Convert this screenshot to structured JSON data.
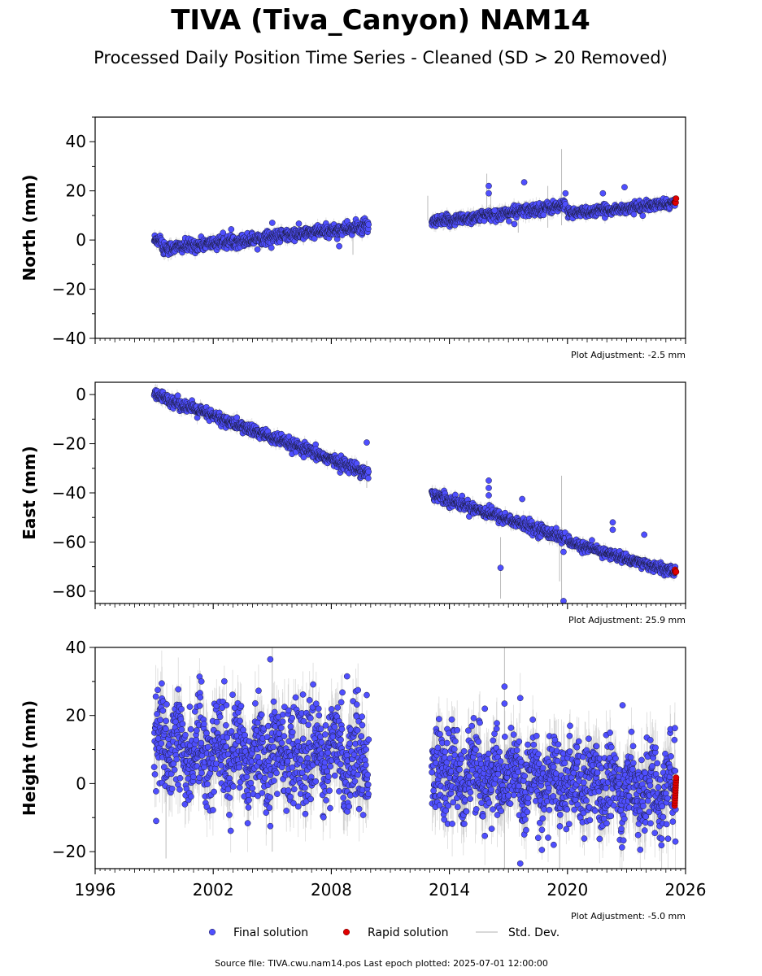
{
  "title": "TIVA (Tiva_Canyon) NAM14",
  "subtitle": "Processed Daily Position Time Series - Cleaned (SD > 20 Removed)",
  "footer": "Source file: TIVA.cwu.nam14.pos  Last epoch plotted: 2025-07-01 12:00:00",
  "legend": {
    "placement": "bottom-center",
    "items": [
      {
        "label": "Final solution",
        "color": "#4f4fff",
        "kind": "dot"
      },
      {
        "label": "Rapid solution",
        "color": "#e00000",
        "kind": "dot"
      },
      {
        "label": "Std. Dev.",
        "color": "#cccccc",
        "kind": "line"
      }
    ]
  },
  "colors": {
    "final": "#4f4fff",
    "rapid": "#e00000",
    "edge": "#1a1a3a",
    "stddev": "#bbbbbb"
  },
  "chart_data": [
    {
      "type": "scatter",
      "ylabel": "North (mm)",
      "xlim": [
        1996,
        2026
      ],
      "ylim": [
        -40,
        50
      ],
      "yticks": [
        -40,
        -20,
        0,
        20,
        40
      ],
      "adjustment": "Plot Adjustment: -2.5 mm",
      "segments": [
        {
          "x0": 1999.0,
          "x1": 2009.9,
          "y0": -4.0,
          "y1": 5.5,
          "noise": 1.3,
          "std": 2.0,
          "startBump": 1.0
        },
        {
          "x0": 2013.1,
          "x1": 2019.9,
          "y0": 7.0,
          "y1": 14.0,
          "noise": 1.2,
          "std": 2.2
        },
        {
          "x0": 2020.0,
          "x1": 2020.6,
          "y0": 11.5,
          "y1": 11.0,
          "noise": 1.0,
          "std": 2.0
        },
        {
          "x0": 2020.6,
          "x1": 2025.5,
          "y0": 11.0,
          "y1": 15.0,
          "noise": 1.0,
          "std": 1.8
        }
      ],
      "rapid": {
        "x0": 2025.45,
        "x1": 2025.52,
        "y": 15.5,
        "spread": 0.5
      },
      "outliers": [
        [
          2016.0,
          22
        ],
        [
          2016.0,
          19
        ],
        [
          2017.8,
          23.5
        ],
        [
          2005.0,
          7
        ],
        [
          2008.4,
          -2.5
        ],
        [
          2016.3,
          12
        ],
        [
          2017.3,
          6.5
        ],
        [
          2021.8,
          19
        ],
        [
          2022.9,
          21.5
        ],
        [
          2019.9,
          19
        ]
      ],
      "std_spikes": [
        [
          2012.9,
          18,
          8
        ],
        [
          2019.7,
          6,
          37
        ],
        [
          2019.0,
          5,
          22
        ],
        [
          2017.5,
          3,
          16
        ],
        [
          2016.1,
          6,
          19
        ],
        [
          2015.9,
          13,
          27
        ],
        [
          2009.1,
          -6,
          7
        ]
      ]
    },
    {
      "type": "scatter",
      "ylabel": "East (mm)",
      "xlim": [
        1996,
        2026
      ],
      "ylim": [
        -85,
        5
      ],
      "yticks": [
        -80,
        -60,
        -40,
        -20,
        0
      ],
      "adjustment": "Plot Adjustment: 25.9 mm",
      "segments": [
        {
          "x0": 1999.0,
          "x1": 2009.9,
          "y0": 0.0,
          "y1": -32.0,
          "noise": 1.2,
          "std": 2.0
        },
        {
          "x0": 2013.1,
          "x1": 2019.9,
          "y0": -40.5,
          "y1": -58.5,
          "noise": 1.2,
          "std": 2.2
        },
        {
          "x0": 2020.0,
          "x1": 2025.5,
          "y0": -60.0,
          "y1": -72.5,
          "noise": 1.0,
          "std": 1.8
        }
      ],
      "rapid": {
        "x0": 2025.45,
        "x1": 2025.52,
        "y": -71.8,
        "spread": 0.6
      },
      "outliers": [
        [
          2009.8,
          -19.5
        ],
        [
          2006.6,
          -25.5
        ],
        [
          2016.0,
          -35
        ],
        [
          2016.0,
          -38
        ],
        [
          2016.0,
          -41
        ],
        [
          2017.7,
          -42.5
        ],
        [
          2016.6,
          -70.5
        ],
        [
          2019.8,
          -84
        ],
        [
          2019.8,
          -64
        ],
        [
          2022.3,
          -52
        ],
        [
          2022.3,
          -55
        ],
        [
          2023.9,
          -57
        ]
      ],
      "std_spikes": [
        [
          2016.6,
          -83,
          -58
        ],
        [
          2019.7,
          -86,
          -33
        ],
        [
          2019.6,
          -76,
          -56
        ],
        [
          2009.8,
          -38,
          -27
        ]
      ]
    },
    {
      "type": "scatter",
      "ylabel": "Height (mm)",
      "xlim": [
        1996,
        2026
      ],
      "ylim": [
        -25,
        40
      ],
      "yticks": [
        -20,
        0,
        20,
        40
      ],
      "xticks": [
        1996,
        2002,
        2008,
        2014,
        2020,
        2026
      ],
      "adjustment": "Plot Adjustment: -5.0 mm",
      "segments": [
        {
          "x0": 1999.0,
          "x1": 2009.9,
          "y0": 10.0,
          "y1": 8.0,
          "noise": 7.0,
          "std": 7.0,
          "wave": 4.0
        },
        {
          "x0": 2013.1,
          "x1": 2025.5,
          "y0": 3.0,
          "y1": -2.0,
          "noise": 6.0,
          "std": 7.0,
          "wave": 3.0
        }
      ],
      "rapid": {
        "x0": 2025.45,
        "x1": 2025.52,
        "y": -2.0,
        "spread": 4.5
      },
      "outliers": [
        [
          2004.9,
          36.5
        ],
        [
          2001.4,
          30
        ],
        [
          2008.8,
          31.5
        ],
        [
          2009.8,
          26
        ],
        [
          2016.8,
          28.5
        ],
        [
          2016.8,
          23.5
        ],
        [
          2017.6,
          -23.5
        ],
        [
          2018.7,
          -19.5
        ],
        [
          2019.3,
          -18
        ],
        [
          1999.1,
          -11
        ],
        [
          2004.9,
          -12.5
        ],
        [
          2022.8,
          23
        ],
        [
          2015.8,
          22
        ]
      ],
      "std_spikes": [
        [
          1999.6,
          -22,
          15
        ],
        [
          2005.0,
          -20,
          40
        ],
        [
          2016.8,
          -25,
          40
        ],
        [
          2019.6,
          -25,
          8
        ]
      ]
    }
  ]
}
